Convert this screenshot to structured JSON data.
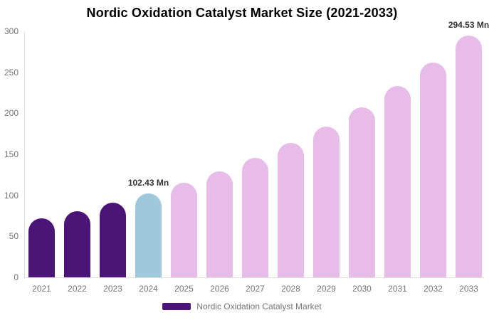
{
  "chart_data": {
    "type": "bar",
    "title": "Nordic Oxidation Catalyst Market Size (2021-2033)",
    "unit": "Mn",
    "categories": [
      "2021",
      "2022",
      "2023",
      "2024",
      "2025",
      "2026",
      "2027",
      "2028",
      "2029",
      "2030",
      "2031",
      "2032",
      "2033"
    ],
    "series": [
      {
        "name": "Nordic Oxidation Catalyst Market",
        "values": [
          72.0,
          81.0,
          91.1,
          102.43,
          115.2,
          129.5,
          145.7,
          163.8,
          184.2,
          207.2,
          232.9,
          261.9,
          294.53
        ]
      }
    ],
    "bar_colors": [
      "#4B1477",
      "#4B1477",
      "#4B1477",
      "#9FC8DD",
      "#E7BCE8",
      "#E7BCE8",
      "#E7BCE8",
      "#E7BCE8",
      "#E7BCE8",
      "#E7BCE8",
      "#E7BCE8",
      "#E7BCE8",
      "#E7BCE8"
    ],
    "ylim": [
      0,
      300
    ],
    "yticks": [
      0,
      50,
      100,
      150,
      200,
      250,
      300
    ],
    "xlabel": "",
    "ylabel": "",
    "grid": false,
    "legend_position": "bottom",
    "data_labels": [
      {
        "category": "2024",
        "text": "102.43 Mn"
      },
      {
        "category": "2033",
        "text": "294.53 Mn"
      }
    ]
  },
  "legend": {
    "label": "Nordic Oxidation Catalyst Market",
    "swatch_color": "#4B1477"
  },
  "colors": {
    "historical_bar": "#4B1477",
    "base_year_bar": "#9FC8DD",
    "forecast_bar": "#E7BCE8",
    "axis_line": "#E0E0E0",
    "tick_text": "#757575",
    "title_text": "#000000",
    "data_label_text": "#333333",
    "background": "#FFFFFF"
  }
}
